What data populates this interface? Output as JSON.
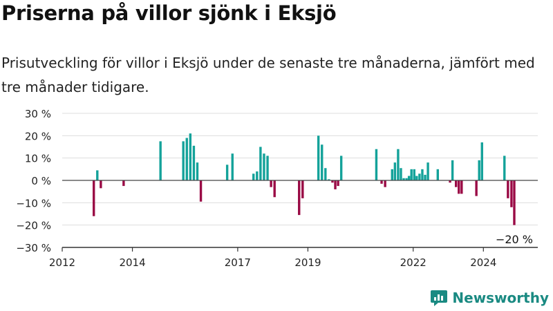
{
  "title": "Priserna på villor sjönk i Eksjö",
  "subtitle": "Prisutveckling för villor i Eksjö under de senaste tre månaderna, jämfört med tre månader tidigare.",
  "brand": "Newsworthy",
  "colors": {
    "positive": "#14a29a",
    "negative": "#9a0a45",
    "grid": "#dddddd",
    "axis": "#333333",
    "brand": "#1a8a82"
  },
  "chart_data": {
    "type": "bar",
    "ylim": [
      -30,
      30
    ],
    "y_ticks": [
      30,
      20,
      10,
      0,
      -10,
      -20,
      -30
    ],
    "y_tick_labels": [
      "30 %",
      "20 %",
      "10 %",
      "0 %",
      "−10 %",
      "−20 %",
      "−30 %"
    ],
    "x_ticks": [
      2012,
      2014,
      2017,
      2019,
      2022,
      2024
    ],
    "x_tick_labels": [
      "2012",
      "2014",
      "2017",
      "2019",
      "2022",
      "2024"
    ],
    "grid": true,
    "annotation": "−20 %",
    "points": [
      {
        "x": 2012.9,
        "y": -16
      },
      {
        "x": 2013.0,
        "y": 4.5
      },
      {
        "x": 2013.1,
        "y": -3.5
      },
      {
        "x": 2013.75,
        "y": -2.5
      },
      {
        "x": 2014.8,
        "y": 17.5
      },
      {
        "x": 2015.45,
        "y": 17.5
      },
      {
        "x": 2015.55,
        "y": 19
      },
      {
        "x": 2015.65,
        "y": 21
      },
      {
        "x": 2015.75,
        "y": 15.5
      },
      {
        "x": 2015.85,
        "y": 8
      },
      {
        "x": 2015.95,
        "y": -9.5
      },
      {
        "x": 2016.7,
        "y": 7
      },
      {
        "x": 2016.85,
        "y": 12
      },
      {
        "x": 2017.45,
        "y": 3
      },
      {
        "x": 2017.55,
        "y": 4
      },
      {
        "x": 2017.65,
        "y": 15
      },
      {
        "x": 2017.75,
        "y": 12
      },
      {
        "x": 2017.85,
        "y": 11
      },
      {
        "x": 2017.95,
        "y": -3
      },
      {
        "x": 2018.05,
        "y": -7.5
      },
      {
        "x": 2018.75,
        "y": -15.5
      },
      {
        "x": 2018.85,
        "y": -8
      },
      {
        "x": 2019.3,
        "y": 20
      },
      {
        "x": 2019.4,
        "y": 16
      },
      {
        "x": 2019.5,
        "y": 5.5
      },
      {
        "x": 2019.6,
        "y": 0.5
      },
      {
        "x": 2019.7,
        "y": -1
      },
      {
        "x": 2019.78,
        "y": -4
      },
      {
        "x": 2019.86,
        "y": -2.5
      },
      {
        "x": 2019.95,
        "y": 11
      },
      {
        "x": 2020.95,
        "y": 14
      },
      {
        "x": 2021.1,
        "y": -1.5
      },
      {
        "x": 2021.2,
        "y": -3
      },
      {
        "x": 2021.4,
        "y": 5
      },
      {
        "x": 2021.48,
        "y": 8
      },
      {
        "x": 2021.57,
        "y": 14
      },
      {
        "x": 2021.65,
        "y": 5.5
      },
      {
        "x": 2021.73,
        "y": 1
      },
      {
        "x": 2021.81,
        "y": 1
      },
      {
        "x": 2021.88,
        "y": 2
      },
      {
        "x": 2021.95,
        "y": 5
      },
      {
        "x": 2022.03,
        "y": 5
      },
      {
        "x": 2022.1,
        "y": 2
      },
      {
        "x": 2022.18,
        "y": 3
      },
      {
        "x": 2022.26,
        "y": 5
      },
      {
        "x": 2022.34,
        "y": 2.5
      },
      {
        "x": 2022.42,
        "y": 8
      },
      {
        "x": 2022.7,
        "y": 5
      },
      {
        "x": 2023.05,
        "y": -1
      },
      {
        "x": 2023.12,
        "y": 9
      },
      {
        "x": 2023.22,
        "y": -3
      },
      {
        "x": 2023.3,
        "y": -6
      },
      {
        "x": 2023.38,
        "y": -6
      },
      {
        "x": 2023.8,
        "y": -7
      },
      {
        "x": 2023.88,
        "y": 9
      },
      {
        "x": 2023.96,
        "y": 17
      },
      {
        "x": 2024.6,
        "y": 11
      },
      {
        "x": 2024.7,
        "y": -8
      },
      {
        "x": 2024.8,
        "y": -12
      },
      {
        "x": 2024.88,
        "y": -20
      }
    ]
  }
}
